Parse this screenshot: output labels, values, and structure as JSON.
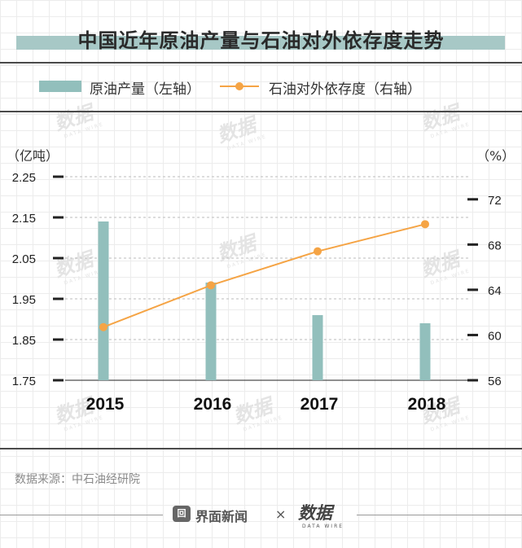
{
  "title": "中国近年原油产量与石油对外依存度走势",
  "legend": {
    "bar_label": "原油产量（左轴）",
    "line_label": "石油对外依存度（右轴）"
  },
  "units": {
    "left": "（亿吨）",
    "right": "（%）"
  },
  "source": "数据来源：中石油经研院",
  "footer": {
    "brand": "界面新闻",
    "brand_icon": "回",
    "times": "×",
    "logo": "数据",
    "logo_sub": "DATA WIRE"
  },
  "watermark": {
    "text": "数据",
    "sub": "DATA WIRE"
  },
  "colors": {
    "bar": "#92bfbc",
    "line": "#f5a445",
    "axis": "#222222",
    "grid": "#bbbbbb"
  },
  "chart_data": {
    "type": "bar+line",
    "categories": [
      "2015",
      "2016",
      "2017",
      "2018"
    ],
    "series": [
      {
        "name": "原油产量",
        "axis": "left",
        "type": "bar",
        "values": [
          2.14,
          1.99,
          1.91,
          1.89
        ]
      },
      {
        "name": "石油对外依存度",
        "axis": "right",
        "type": "line",
        "values": [
          60.7,
          64.4,
          67.4,
          69.8
        ]
      }
    ],
    "left_axis": {
      "min": 1.75,
      "max": 2.25,
      "ticks": [
        "2.25",
        "2.15",
        "2.05",
        "1.95",
        "1.85",
        "1.75"
      ]
    },
    "right_axis": {
      "min": 56,
      "max": 74,
      "ticks": [
        "72",
        "68",
        "64",
        "60",
        "56"
      ]
    }
  }
}
